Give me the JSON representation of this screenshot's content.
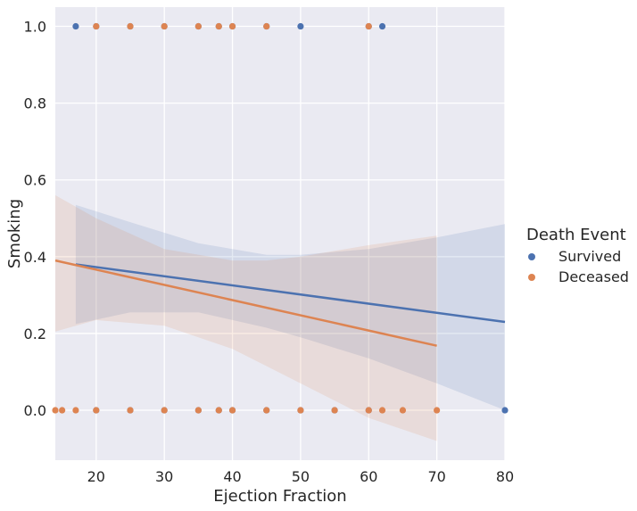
{
  "chart_data": {
    "type": "scatter",
    "xlabel": "Ejection Fraction",
    "ylabel": "Smoking",
    "xlim": [
      14,
      80
    ],
    "ylim": [
      -0.13,
      1.05
    ],
    "xticks": [
      "20",
      "30",
      "40",
      "50",
      "60",
      "70",
      "80"
    ],
    "yticks": [
      "0.0",
      "0.2",
      "0.4",
      "0.6",
      "0.8",
      "1.0"
    ],
    "grid": true,
    "background_color": "#eaeaf2",
    "legend": {
      "title": "Death Event",
      "placement": "center-right"
    },
    "series": [
      {
        "name": "Survived",
        "color": "#4c72b0",
        "points_y1": [
          17,
          20,
          25,
          30,
          35,
          38,
          40,
          45,
          50,
          60,
          62
        ],
        "points_y0": [
          20,
          25,
          30,
          35,
          38,
          40,
          45,
          50,
          55,
          60,
          80
        ],
        "regression": {
          "x": [
            17,
            80
          ],
          "y": [
            0.38,
            0.23
          ]
        },
        "ci_band": {
          "x": [
            17,
            25,
            35,
            45,
            50,
            60,
            70,
            80
          ],
          "upper": [
            0.535,
            0.49,
            0.435,
            0.405,
            0.405,
            0.42,
            0.45,
            0.485
          ],
          "lower": [
            0.225,
            0.255,
            0.255,
            0.215,
            0.19,
            0.135,
            0.07,
            0.0
          ]
        }
      },
      {
        "name": "Deceased",
        "color": "#dd8452",
        "points_y1": [
          20,
          25,
          30,
          35,
          38,
          40,
          45,
          60
        ],
        "points_y0": [
          14,
          15,
          17,
          20,
          25,
          30,
          35,
          38,
          40,
          45,
          50,
          55,
          60,
          62,
          65,
          70
        ],
        "regression": {
          "x": [
            14,
            70
          ],
          "y": [
            0.39,
            0.168
          ]
        },
        "ci_band": {
          "x": [
            14,
            20,
            30,
            40,
            45,
            50,
            60,
            70
          ],
          "upper": [
            0.56,
            0.5,
            0.42,
            0.39,
            0.39,
            0.4,
            0.43,
            0.455
          ],
          "lower": [
            0.205,
            0.235,
            0.22,
            0.16,
            0.115,
            0.07,
            -0.02,
            -0.08
          ]
        }
      }
    ]
  }
}
